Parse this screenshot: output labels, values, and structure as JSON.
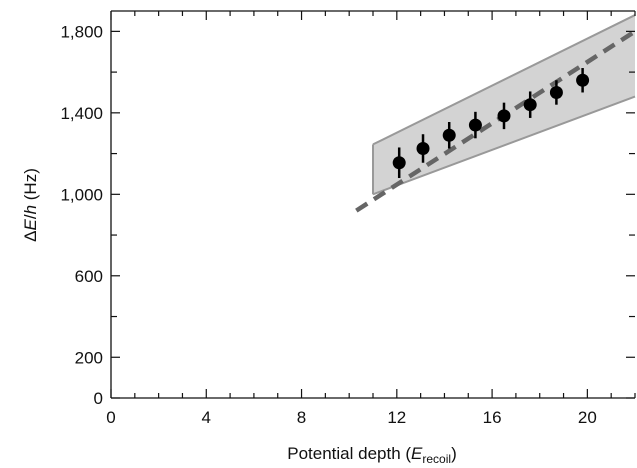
{
  "chart_data": {
    "type": "scatter",
    "title": "",
    "xlabel": "Potential depth (",
    "xlabel_var": "E",
    "xlabel_sub": "recoil",
    "xlabel_end": ")",
    "ylabel": "ΔE/h (Hz)",
    "ylabel_delta": "Δ",
    "ylabel_E": "E",
    "ylabel_slash": "/",
    "ylabel_h": "h",
    "ylabel_unit": " (Hz)",
    "xlim": [
      0,
      22
    ],
    "ylim": [
      0,
      1900
    ],
    "x_ticks": [
      0,
      4,
      8,
      12,
      16,
      20
    ],
    "x_tick_labels": [
      "0",
      "4",
      "8",
      "12",
      "16",
      "20"
    ],
    "y_ticks": [
      0,
      200,
      600,
      1000,
      1400,
      1800
    ],
    "y_tick_labels": [
      "0",
      "200",
      "600",
      "1,000",
      "1,400",
      "1,800"
    ],
    "x_minor_step": 1,
    "y_minor_step": 200,
    "grid": false,
    "legend": "none",
    "points": {
      "x": [
        12.1,
        13.1,
        14.2,
        15.3,
        16.5,
        17.6,
        18.7,
        19.8
      ],
      "y": [
        1155,
        1225,
        1290,
        1340,
        1385,
        1440,
        1500,
        1560
      ],
      "err": [
        75,
        70,
        65,
        65,
        65,
        65,
        60,
        60
      ]
    },
    "theory_line": {
      "x": [
        10.3,
        22
      ],
      "y": [
        920,
        1800
      ],
      "style": "dashed"
    },
    "uncertainty_band": {
      "x": [
        11,
        22
      ],
      "upper": [
        1245,
        1880
      ],
      "lower": [
        1000,
        1480
      ]
    },
    "colors": {
      "points": "#000000",
      "line": "#666666",
      "band_fill": "#d3d3d3",
      "band_edge": "#999999",
      "axis": "#111111"
    }
  }
}
